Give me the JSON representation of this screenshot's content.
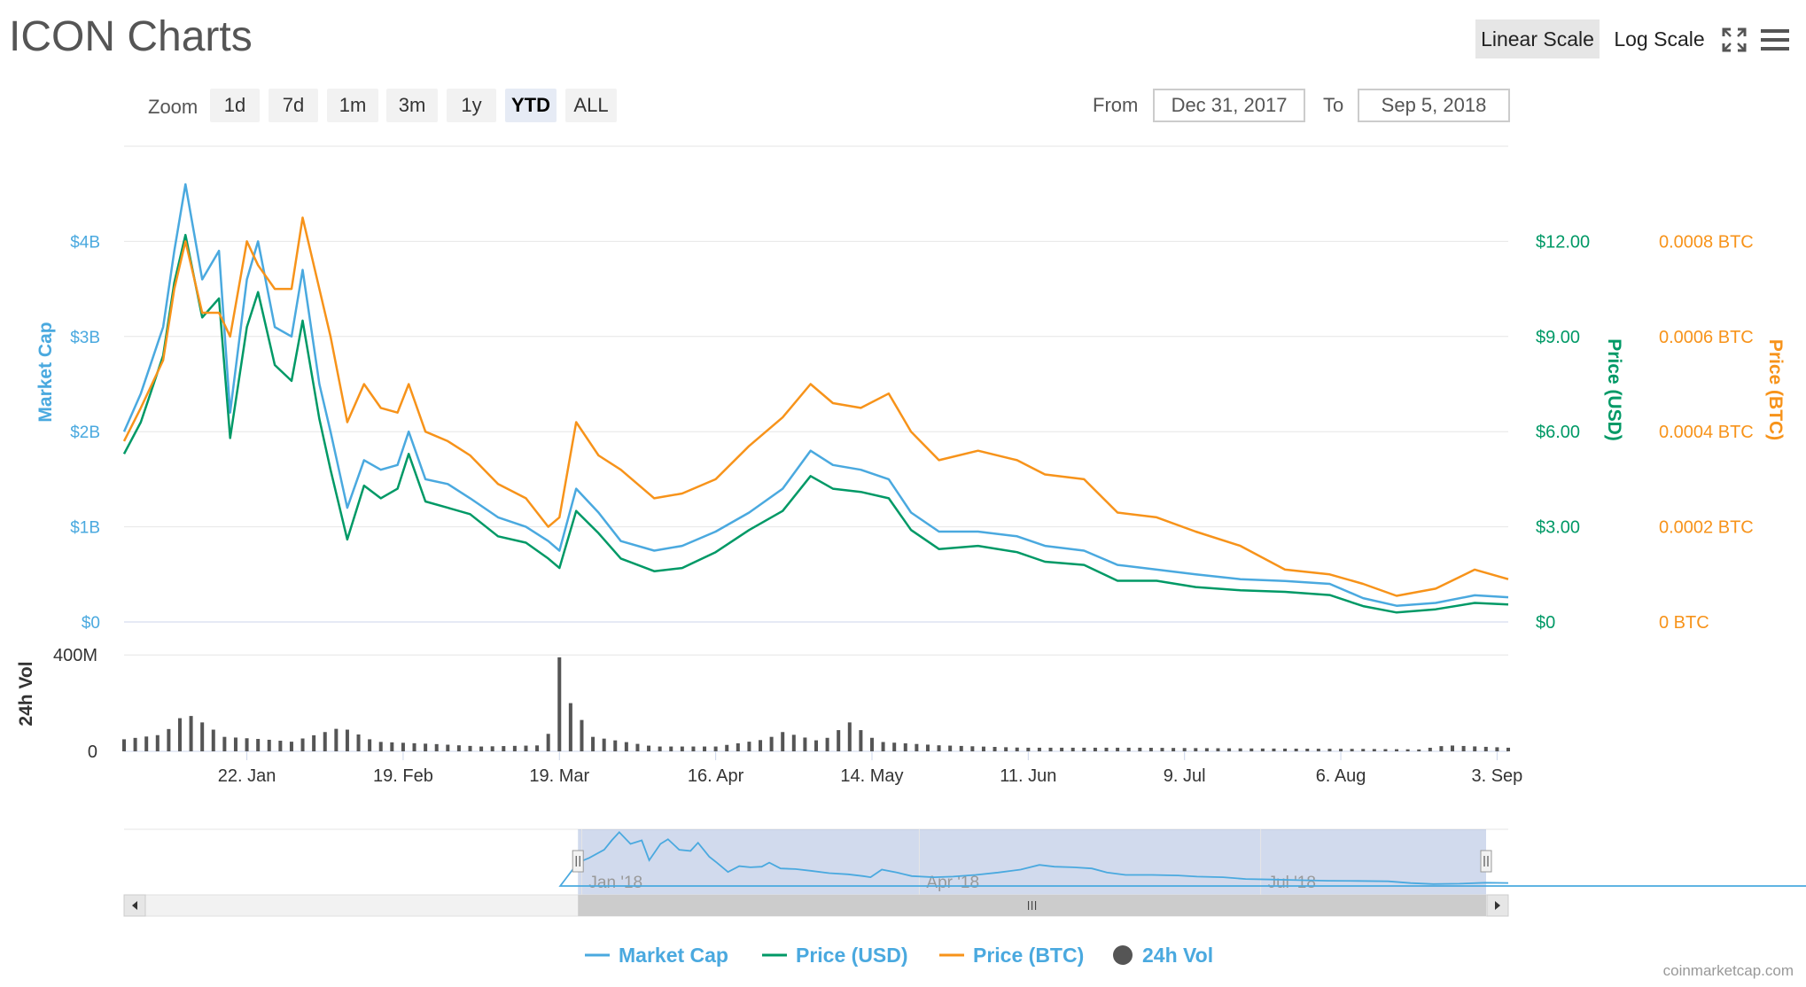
{
  "title": "ICON Charts",
  "credit": "coinmarketcap.com",
  "scale": {
    "linear_label": "Linear Scale",
    "log_label": "Log Scale",
    "selected": "linear"
  },
  "icons": {
    "fullscreen": "fullscreen-icon",
    "menu": "hamburger-menu-icon"
  },
  "zoom": {
    "label": "Zoom",
    "buttons": [
      "1d",
      "7d",
      "1m",
      "3m",
      "1y",
      "YTD",
      "ALL"
    ],
    "selected": "YTD"
  },
  "range": {
    "from_label": "From",
    "from_value": "Dec 31, 2017",
    "to_label": "To",
    "to_value": "Sep 5, 2018"
  },
  "colors": {
    "market_cap": "#4aa9df",
    "price_usd": "#009966",
    "price_btc": "#f7931a",
    "volume": "#555555"
  },
  "chart_data": {
    "type": "line",
    "x_start": "2017-12-31",
    "x_end": "2018-09-05",
    "x_ticks": [
      {
        "date": "2018-01-22",
        "label": "22. Jan"
      },
      {
        "date": "2018-02-19",
        "label": "19. Feb"
      },
      {
        "date": "2018-03-19",
        "label": "19. Mar"
      },
      {
        "date": "2018-04-16",
        "label": "16. Apr"
      },
      {
        "date": "2018-05-14",
        "label": "14. May"
      },
      {
        "date": "2018-06-11",
        "label": "11. Jun"
      },
      {
        "date": "2018-07-09",
        "label": "9. Jul"
      },
      {
        "date": "2018-08-06",
        "label": "6. Aug"
      },
      {
        "date": "2018-09-03",
        "label": "3. Sep"
      }
    ],
    "axes": {
      "market_cap": {
        "label": "Market Cap",
        "ylim": [
          0,
          5000000000
        ],
        "ticks": [
          {
            "v": 0,
            "label": "$0"
          },
          {
            "v": 1000000000,
            "label": "$1B"
          },
          {
            "v": 2000000000,
            "label": "$2B"
          },
          {
            "v": 3000000000,
            "label": "$3B"
          },
          {
            "v": 4000000000,
            "label": "$4B"
          }
        ]
      },
      "price_usd": {
        "label": "Price (USD)",
        "ylim": [
          0,
          15
        ],
        "ticks": [
          {
            "v": 0,
            "label": "$0"
          },
          {
            "v": 3,
            "label": "$3.00"
          },
          {
            "v": 6,
            "label": "$6.00"
          },
          {
            "v": 9,
            "label": "$9.00"
          },
          {
            "v": 12,
            "label": "$12.00"
          }
        ]
      },
      "price_btc": {
        "label": "Price (BTC)",
        "ylim": [
          0,
          0.001
        ],
        "ticks": [
          {
            "v": 0,
            "label": "0 BTC"
          },
          {
            "v": 0.0002,
            "label": "0.0002 BTC"
          },
          {
            "v": 0.0004,
            "label": "0.0004 BTC"
          },
          {
            "v": 0.0006,
            "label": "0.0006 BTC"
          },
          {
            "v": 0.0008,
            "label": "0.0008 BTC"
          }
        ]
      },
      "volume": {
        "label": "24h Vol",
        "ylim": [
          0,
          500000000
        ],
        "ticks": [
          {
            "v": 0,
            "label": "0"
          },
          {
            "v": 400000000,
            "label": "400M"
          }
        ]
      }
    },
    "series": [
      {
        "name": "Market Cap",
        "axis": "market_cap",
        "points": [
          [
            "2017-12-31",
            2000000000
          ],
          [
            "2018-01-03",
            2400000000
          ],
          [
            "2018-01-07",
            3100000000
          ],
          [
            "2018-01-09",
            3900000000
          ],
          [
            "2018-01-11",
            4600000000
          ],
          [
            "2018-01-14",
            3600000000
          ],
          [
            "2018-01-17",
            3900000000
          ],
          [
            "2018-01-19",
            2200000000
          ],
          [
            "2018-01-22",
            3600000000
          ],
          [
            "2018-01-24",
            4000000000
          ],
          [
            "2018-01-27",
            3100000000
          ],
          [
            "2018-01-30",
            3000000000
          ],
          [
            "2018-02-01",
            3700000000
          ],
          [
            "2018-02-04",
            2500000000
          ],
          [
            "2018-02-06",
            2000000000
          ],
          [
            "2018-02-09",
            1200000000
          ],
          [
            "2018-02-12",
            1700000000
          ],
          [
            "2018-02-15",
            1600000000
          ],
          [
            "2018-02-18",
            1650000000
          ],
          [
            "2018-02-20",
            2000000000
          ],
          [
            "2018-02-23",
            1500000000
          ],
          [
            "2018-02-27",
            1450000000
          ],
          [
            "2018-03-03",
            1300000000
          ],
          [
            "2018-03-08",
            1100000000
          ],
          [
            "2018-03-13",
            1000000000
          ],
          [
            "2018-03-17",
            850000000
          ],
          [
            "2018-03-19",
            750000000
          ],
          [
            "2018-03-22",
            1400000000
          ],
          [
            "2018-03-26",
            1150000000
          ],
          [
            "2018-03-30",
            850000000
          ],
          [
            "2018-04-05",
            750000000
          ],
          [
            "2018-04-10",
            800000000
          ],
          [
            "2018-04-16",
            950000000
          ],
          [
            "2018-04-22",
            1150000000
          ],
          [
            "2018-04-28",
            1400000000
          ],
          [
            "2018-05-03",
            1800000000
          ],
          [
            "2018-05-07",
            1650000000
          ],
          [
            "2018-05-12",
            1600000000
          ],
          [
            "2018-05-17",
            1500000000
          ],
          [
            "2018-05-21",
            1150000000
          ],
          [
            "2018-05-26",
            950000000
          ],
          [
            "2018-06-02",
            950000000
          ],
          [
            "2018-06-09",
            900000000
          ],
          [
            "2018-06-14",
            800000000
          ],
          [
            "2018-06-21",
            750000000
          ],
          [
            "2018-06-27",
            600000000
          ],
          [
            "2018-07-04",
            550000000
          ],
          [
            "2018-07-11",
            500000000
          ],
          [
            "2018-07-19",
            450000000
          ],
          [
            "2018-07-27",
            430000000
          ],
          [
            "2018-08-04",
            400000000
          ],
          [
            "2018-08-10",
            250000000
          ],
          [
            "2018-08-16",
            170000000
          ],
          [
            "2018-08-23",
            200000000
          ],
          [
            "2018-08-30",
            280000000
          ],
          [
            "2018-09-05",
            260000000
          ]
        ]
      },
      {
        "name": "Price (USD)",
        "axis": "price_usd",
        "points": [
          [
            "2017-12-31",
            5.3
          ],
          [
            "2018-01-03",
            6.3
          ],
          [
            "2018-01-07",
            8.4
          ],
          [
            "2018-01-09",
            10.7
          ],
          [
            "2018-01-11",
            12.2
          ],
          [
            "2018-01-14",
            9.6
          ],
          [
            "2018-01-17",
            10.2
          ],
          [
            "2018-01-19",
            5.8
          ],
          [
            "2018-01-22",
            9.3
          ],
          [
            "2018-01-24",
            10.4
          ],
          [
            "2018-01-27",
            8.1
          ],
          [
            "2018-01-30",
            7.6
          ],
          [
            "2018-02-01",
            9.5
          ],
          [
            "2018-02-04",
            6.4
          ],
          [
            "2018-02-06",
            4.8
          ],
          [
            "2018-02-09",
            2.6
          ],
          [
            "2018-02-12",
            4.3
          ],
          [
            "2018-02-15",
            3.9
          ],
          [
            "2018-02-18",
            4.2
          ],
          [
            "2018-02-20",
            5.3
          ],
          [
            "2018-02-23",
            3.8
          ],
          [
            "2018-02-27",
            3.6
          ],
          [
            "2018-03-03",
            3.4
          ],
          [
            "2018-03-08",
            2.7
          ],
          [
            "2018-03-13",
            2.5
          ],
          [
            "2018-03-17",
            2.0
          ],
          [
            "2018-03-19",
            1.7
          ],
          [
            "2018-03-22",
            3.5
          ],
          [
            "2018-03-26",
            2.8
          ],
          [
            "2018-03-30",
            2.0
          ],
          [
            "2018-04-05",
            1.6
          ],
          [
            "2018-04-10",
            1.7
          ],
          [
            "2018-04-16",
            2.2
          ],
          [
            "2018-04-22",
            2.9
          ],
          [
            "2018-04-28",
            3.5
          ],
          [
            "2018-05-03",
            4.6
          ],
          [
            "2018-05-07",
            4.2
          ],
          [
            "2018-05-12",
            4.1
          ],
          [
            "2018-05-17",
            3.9
          ],
          [
            "2018-05-21",
            2.9
          ],
          [
            "2018-05-26",
            2.3
          ],
          [
            "2018-06-02",
            2.4
          ],
          [
            "2018-06-09",
            2.2
          ],
          [
            "2018-06-14",
            1.9
          ],
          [
            "2018-06-21",
            1.8
          ],
          [
            "2018-06-27",
            1.3
          ],
          [
            "2018-07-04",
            1.3
          ],
          [
            "2018-07-11",
            1.1
          ],
          [
            "2018-07-19",
            1.0
          ],
          [
            "2018-07-27",
            0.95
          ],
          [
            "2018-08-04",
            0.85
          ],
          [
            "2018-08-10",
            0.5
          ],
          [
            "2018-08-16",
            0.3
          ],
          [
            "2018-08-23",
            0.4
          ],
          [
            "2018-08-30",
            0.6
          ],
          [
            "2018-09-05",
            0.55
          ]
        ]
      },
      {
        "name": "Price (BTC)",
        "axis": "price_btc",
        "points": [
          [
            "2017-12-31",
            0.00038
          ],
          [
            "2018-01-03",
            0.00045
          ],
          [
            "2018-01-07",
            0.00055
          ],
          [
            "2018-01-09",
            0.0007
          ],
          [
            "2018-01-11",
            0.0008
          ],
          [
            "2018-01-14",
            0.00065
          ],
          [
            "2018-01-17",
            0.00065
          ],
          [
            "2018-01-19",
            0.0006
          ],
          [
            "2018-01-22",
            0.0008
          ],
          [
            "2018-01-24",
            0.00075
          ],
          [
            "2018-01-27",
            0.0007
          ],
          [
            "2018-01-30",
            0.0007
          ],
          [
            "2018-02-01",
            0.00085
          ],
          [
            "2018-02-04",
            0.0007
          ],
          [
            "2018-02-06",
            0.0006
          ],
          [
            "2018-02-09",
            0.00042
          ],
          [
            "2018-02-12",
            0.0005
          ],
          [
            "2018-02-15",
            0.00045
          ],
          [
            "2018-02-18",
            0.00044
          ],
          [
            "2018-02-20",
            0.0005
          ],
          [
            "2018-02-23",
            0.0004
          ],
          [
            "2018-02-27",
            0.00038
          ],
          [
            "2018-03-03",
            0.00035
          ],
          [
            "2018-03-08",
            0.00029
          ],
          [
            "2018-03-13",
            0.00026
          ],
          [
            "2018-03-17",
            0.0002
          ],
          [
            "2018-03-19",
            0.00022
          ],
          [
            "2018-03-22",
            0.00042
          ],
          [
            "2018-03-26",
            0.00035
          ],
          [
            "2018-03-30",
            0.00032
          ],
          [
            "2018-04-05",
            0.00026
          ],
          [
            "2018-04-10",
            0.00027
          ],
          [
            "2018-04-16",
            0.0003
          ],
          [
            "2018-04-22",
            0.00037
          ],
          [
            "2018-04-28",
            0.00043
          ],
          [
            "2018-05-03",
            0.0005
          ],
          [
            "2018-05-07",
            0.00046
          ],
          [
            "2018-05-12",
            0.00045
          ],
          [
            "2018-05-17",
            0.00048
          ],
          [
            "2018-05-21",
            0.0004
          ],
          [
            "2018-05-26",
            0.00034
          ],
          [
            "2018-06-02",
            0.00036
          ],
          [
            "2018-06-09",
            0.00034
          ],
          [
            "2018-06-14",
            0.00031
          ],
          [
            "2018-06-21",
            0.0003
          ],
          [
            "2018-06-27",
            0.00023
          ],
          [
            "2018-07-04",
            0.00022
          ],
          [
            "2018-07-11",
            0.00019
          ],
          [
            "2018-07-19",
            0.00016
          ],
          [
            "2018-07-27",
            0.00011
          ],
          [
            "2018-08-04",
            0.0001
          ],
          [
            "2018-08-10",
            8e-05
          ],
          [
            "2018-08-16",
            5.5e-05
          ],
          [
            "2018-08-23",
            7e-05
          ],
          [
            "2018-08-30",
            0.00011
          ],
          [
            "2018-09-05",
            9e-05
          ]
        ]
      },
      {
        "name": "24h Vol",
        "axis": "volume",
        "points": [
          [
            "2017-12-31",
            50000000
          ],
          [
            "2018-01-07",
            70000000
          ],
          [
            "2018-01-11",
            160000000
          ],
          [
            "2018-01-14",
            120000000
          ],
          [
            "2018-01-18",
            60000000
          ],
          [
            "2018-01-25",
            50000000
          ],
          [
            "2018-01-30",
            40000000
          ],
          [
            "2018-02-05",
            80000000
          ],
          [
            "2018-02-08",
            100000000
          ],
          [
            "2018-02-14",
            40000000
          ],
          [
            "2018-02-25",
            30000000
          ],
          [
            "2018-03-05",
            20000000
          ],
          [
            "2018-03-16",
            25000000
          ],
          [
            "2018-03-18",
            120000000
          ],
          [
            "2018-03-19",
            390000000
          ],
          [
            "2018-03-21",
            200000000
          ],
          [
            "2018-03-25",
            60000000
          ],
          [
            "2018-04-05",
            20000000
          ],
          [
            "2018-04-16",
            20000000
          ],
          [
            "2018-04-25",
            50000000
          ],
          [
            "2018-04-28",
            80000000
          ],
          [
            "2018-05-05",
            40000000
          ],
          [
            "2018-05-10",
            120000000
          ],
          [
            "2018-05-15",
            40000000
          ],
          [
            "2018-05-26",
            25000000
          ],
          [
            "2018-06-10",
            15000000
          ],
          [
            "2018-07-01",
            15000000
          ],
          [
            "2018-07-20",
            12000000
          ],
          [
            "2018-08-10",
            10000000
          ],
          [
            "2018-08-20",
            8000000
          ],
          [
            "2018-08-25",
            25000000
          ],
          [
            "2018-09-05",
            15000000
          ]
        ]
      }
    ],
    "navigator": {
      "x_start": "2017-09-01",
      "labels": [
        "Jan '18",
        "Apr '18",
        "Jul '18"
      ],
      "label_dates": [
        "2018-01-01",
        "2018-04-01",
        "2018-07-01"
      ]
    },
    "legend": {
      "position": "bottom",
      "items": [
        "Market Cap",
        "Price (USD)",
        "Price (BTC)",
        "24h Vol"
      ]
    },
    "grid": true
  }
}
